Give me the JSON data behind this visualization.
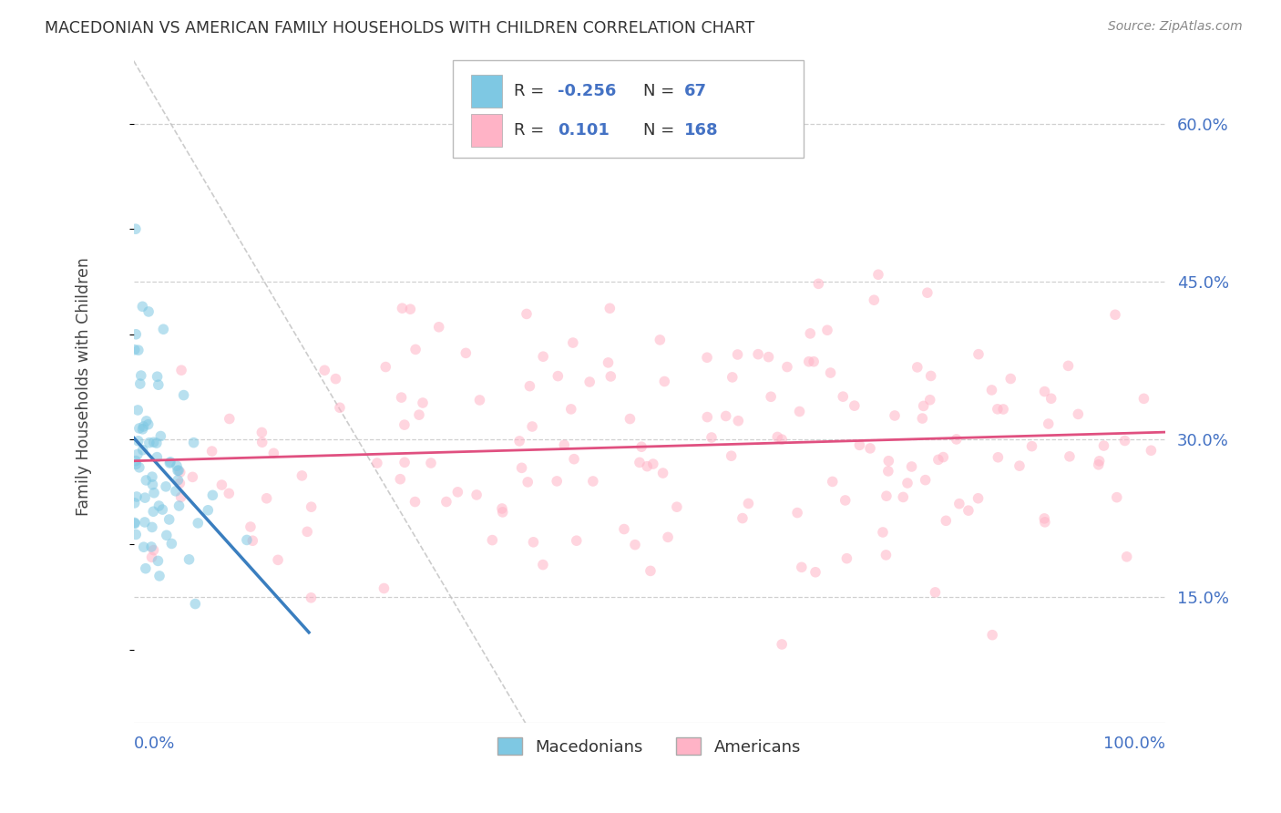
{
  "title": "MACEDONIAN VS AMERICAN FAMILY HOUSEHOLDS WITH CHILDREN CORRELATION CHART",
  "source": "Source: ZipAtlas.com",
  "ylabel": "Family Households with Children",
  "ytick_labels": [
    "15.0%",
    "30.0%",
    "45.0%",
    "60.0%"
  ],
  "ytick_values": [
    0.15,
    0.3,
    0.45,
    0.6
  ],
  "xlim": [
    0.0,
    1.0
  ],
  "ylim": [
    0.03,
    0.67
  ],
  "blue_R": -0.256,
  "blue_N": 67,
  "pink_R": 0.101,
  "pink_N": 168,
  "blue_color": "#7ec8e3",
  "pink_color": "#ffb3c6",
  "blue_line_color": "#3a7ebf",
  "pink_line_color": "#e05080",
  "marker_size": 70,
  "marker_alpha": 0.55,
  "grid_color": "#d0d0d0",
  "diag_line_color": "#c0c0c0",
  "blue_seed": 10,
  "pink_seed": 20
}
